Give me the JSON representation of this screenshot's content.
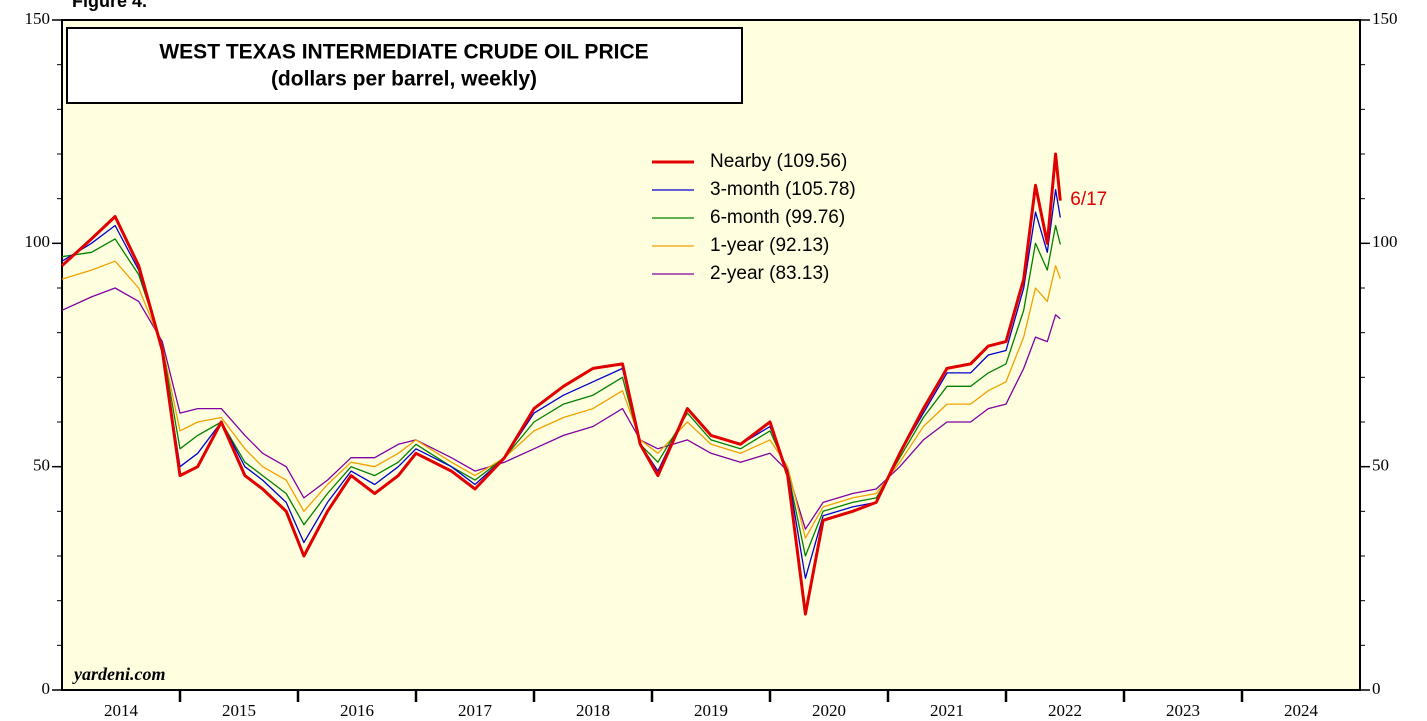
{
  "chart_data": {
    "type": "line",
    "figure_label": "Figure 4.",
    "title": "WEST TEXAS INTERMEDIATE CRUDE OIL PRICE",
    "subtitle": "(dollars per barrel, weekly)",
    "annotation": "6/17",
    "source": "yardeni.com",
    "x": [
      2014.0,
      2014.25,
      2014.45,
      2014.65,
      2014.85,
      2015.0,
      2015.15,
      2015.35,
      2015.55,
      2015.7,
      2015.9,
      2016.05,
      2016.25,
      2016.45,
      2016.65,
      2016.85,
      2017.0,
      2017.3,
      2017.5,
      2017.75,
      2018.0,
      2018.25,
      2018.5,
      2018.75,
      2018.9,
      2019.05,
      2019.3,
      2019.5,
      2019.75,
      2020.0,
      2020.15,
      2020.3,
      2020.45,
      2020.7,
      2020.9,
      2021.1,
      2021.3,
      2021.5,
      2021.7,
      2021.85,
      2022.0,
      2022.15,
      2022.25,
      2022.35,
      2022.42,
      2022.46
    ],
    "series": [
      {
        "name": "Nearby (109.56)",
        "color": "#e00000",
        "values": [
          95,
          101,
          106,
          95,
          76,
          48,
          50,
          60,
          48,
          45,
          40,
          30,
          40,
          48,
          44,
          48,
          53,
          49,
          45,
          52,
          63,
          68,
          72,
          73,
          55,
          48,
          63,
          57,
          55,
          60,
          48,
          17,
          38,
          40,
          42,
          53,
          63,
          72,
          73,
          77,
          78,
          92,
          113,
          100,
          120,
          109.56
        ]
      },
      {
        "name": "3-month (105.78)",
        "color": "#0000cc",
        "values": [
          96,
          100,
          104,
          94,
          76,
          50,
          53,
          60,
          50,
          47,
          42,
          33,
          42,
          49,
          46,
          50,
          54,
          50,
          46,
          52,
          62,
          66,
          69,
          72,
          55,
          49,
          63,
          57,
          55,
          59,
          49,
          25,
          39,
          41,
          42,
          53,
          62,
          71,
          71,
          75,
          76,
          90,
          107,
          98,
          112,
          105.78
        ]
      },
      {
        "name": "6-month (99.76)",
        "color": "#008000",
        "values": [
          97,
          98,
          101,
          93,
          77,
          54,
          57,
          60,
          51,
          48,
          44,
          37,
          44,
          50,
          48,
          51,
          55,
          50,
          47,
          52,
          60,
          64,
          66,
          70,
          55,
          51,
          62,
          56,
          54,
          58,
          49,
          30,
          40,
          42,
          43,
          52,
          61,
          68,
          68,
          71,
          73,
          85,
          100,
          94,
          104,
          99.76
        ]
      },
      {
        "name": "1-year (92.13)",
        "color": "#f0a000",
        "values": [
          92,
          94,
          96,
          90,
          77,
          58,
          60,
          61,
          54,
          50,
          47,
          40,
          46,
          51,
          50,
          53,
          56,
          51,
          48,
          52,
          58,
          61,
          63,
          67,
          56,
          53,
          60,
          55,
          53,
          56,
          50,
          34,
          41,
          43,
          44,
          51,
          59,
          64,
          64,
          67,
          69,
          79,
          90,
          87,
          95,
          92.13
        ]
      },
      {
        "name": "2-year (83.13)",
        "color": "#8000a0",
        "values": [
          85,
          88,
          90,
          87,
          78,
          62,
          63,
          63,
          57,
          53,
          50,
          43,
          47,
          52,
          52,
          55,
          56,
          52,
          49,
          51,
          54,
          57,
          59,
          63,
          56,
          54,
          56,
          53,
          51,
          53,
          49,
          36,
          42,
          44,
          45,
          50,
          56,
          60,
          60,
          63,
          64,
          72,
          79,
          78,
          84,
          83.13
        ]
      }
    ],
    "year_labels": [
      "2014",
      "2015",
      "2016",
      "2017",
      "2018",
      "2019",
      "2020",
      "2021",
      "2022",
      "2023",
      "2024"
    ],
    "xlim": [
      2014,
      2025
    ],
    "xticks": [
      2015,
      2016,
      2017,
      2018,
      2019,
      2020,
      2021,
      2022,
      2023,
      2024
    ],
    "ylim": [
      0,
      150
    ],
    "yticks": [
      0,
      50,
      100,
      150
    ],
    "yminor": [
      10,
      20,
      30,
      40,
      60,
      70,
      80,
      90,
      110,
      120,
      130,
      140
    ],
    "background": "#ffffe0"
  }
}
